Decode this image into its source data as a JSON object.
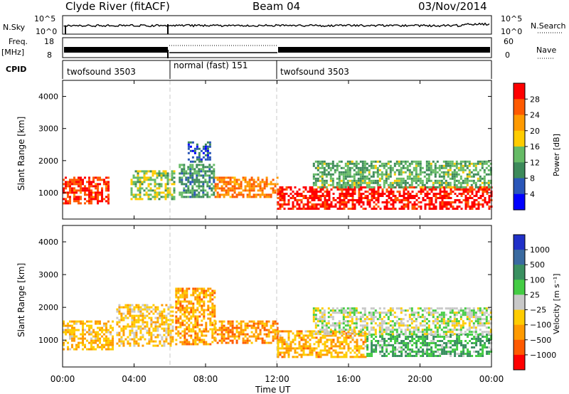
{
  "header": {
    "station": "Clyde River (fitACF)",
    "beam": "Beam 04",
    "date": "03/Nov/2014"
  },
  "strip_labels": {
    "nsky": "N.Sky",
    "nsky_low": "10^0",
    "nsky_high": "10^5",
    "nsearch": "N.Search",
    "nsearch_low": "10^0",
    "nsearch_high": "10^5",
    "freq": "Freq.",
    "freq_unit": "[MHz]",
    "freq_low": "8",
    "freq_high": "18",
    "nave": "Nave",
    "nave_low": "0",
    "nave_high": "60",
    "cpid": "CPID"
  },
  "cpid_segments": [
    {
      "label": "twofsound 3503",
      "start_h": 0,
      "end_h": 6.0
    },
    {
      "label": "normal (fast) 151",
      "start_h": 6.0,
      "end_h": 12.0
    },
    {
      "label": "twofsound 3503",
      "start_h": 12.0,
      "end_h": 24.0
    }
  ],
  "x_axis": {
    "label": "Time UT",
    "ticks": [
      "00:00",
      "04:00",
      "08:00",
      "12:00",
      "16:00",
      "20:00",
      "00:00"
    ],
    "range_h": [
      0,
      24
    ]
  },
  "power_colorbar": {
    "label": "Power [dB]",
    "ticks": [
      "28",
      "24",
      "20",
      "16",
      "12",
      "8",
      "4"
    ],
    "colors": [
      "#ff0000",
      "#ff5a00",
      "#ff9a00",
      "#ffcc00",
      "#66bb66",
      "#3d8a5a",
      "#2a56b8",
      "#0000ff"
    ]
  },
  "velocity_colorbar": {
    "label": "Velocity [m s⁻¹]",
    "ticks": [
      "1000",
      "500",
      "100",
      "25",
      "−25",
      "−100",
      "−500",
      "−1000"
    ],
    "colors": [
      "#2030c8",
      "#3a6aa0",
      "#3a9060",
      "#44cc44",
      "#c8c8c8",
      "#ffcc00",
      "#ff9a00",
      "#ff5a00",
      "#ff0000"
    ]
  },
  "chart_data": [
    {
      "type": "heatmap",
      "title": "Power",
      "xlabel": "Time UT",
      "ylabel": "Slant Range [km]",
      "xlim": [
        0,
        24
      ],
      "ylim": [
        180,
        4500
      ],
      "yticks": [
        1000,
        2000,
        3000,
        4000
      ],
      "colorbar_label": "Power [dB]",
      "colorbar_range": [
        0,
        30
      ],
      "features": [
        {
          "t0": 0.0,
          "t1": 2.6,
          "r0": 700,
          "r1": 1500,
          "value": 26
        },
        {
          "t0": 3.8,
          "t1": 6.2,
          "r0": 800,
          "r1": 1700,
          "value": 14
        },
        {
          "t0": 6.5,
          "t1": 8.5,
          "r0": 900,
          "r1": 1900,
          "value": 10
        },
        {
          "t0": 7.0,
          "t1": 8.3,
          "r0": 2000,
          "r1": 2600,
          "value": 6
        },
        {
          "t0": 8.5,
          "t1": 12.0,
          "r0": 900,
          "r1": 1500,
          "value": 22
        },
        {
          "t0": 12.0,
          "t1": 24.0,
          "r0": 500,
          "r1": 1200,
          "value": 28
        },
        {
          "t0": 14.0,
          "t1": 24.0,
          "r0": 1200,
          "r1": 2000,
          "value": 12
        }
      ]
    },
    {
      "type": "heatmap",
      "title": "Velocity",
      "xlabel": "Time UT",
      "ylabel": "Slant Range [km]",
      "xlim": [
        0,
        24
      ],
      "ylim": [
        180,
        4500
      ],
      "yticks": [
        1000,
        2000,
        3000,
        4000
      ],
      "colorbar_label": "Velocity [m s⁻¹]",
      "colorbar_range": [
        -1000,
        1000
      ],
      "features": [
        {
          "t0": 0.0,
          "t1": 2.8,
          "r0": 700,
          "r1": 1600,
          "value": -300
        },
        {
          "t0": 3.0,
          "t1": 6.2,
          "r0": 800,
          "r1": 2100,
          "value": -250
        },
        {
          "t0": 6.3,
          "t1": 8.5,
          "r0": 900,
          "r1": 2600,
          "value": -400
        },
        {
          "t0": 8.5,
          "t1": 12.0,
          "r0": 900,
          "r1": 1600,
          "value": -450
        },
        {
          "t0": 12.0,
          "t1": 17.0,
          "r0": 500,
          "r1": 1300,
          "value": -350
        },
        {
          "t0": 17.0,
          "t1": 24.0,
          "r0": 500,
          "r1": 1200,
          "value": 300
        },
        {
          "t0": 14.0,
          "t1": 24.0,
          "r0": 1200,
          "r1": 2000,
          "value": 20
        }
      ]
    }
  ]
}
